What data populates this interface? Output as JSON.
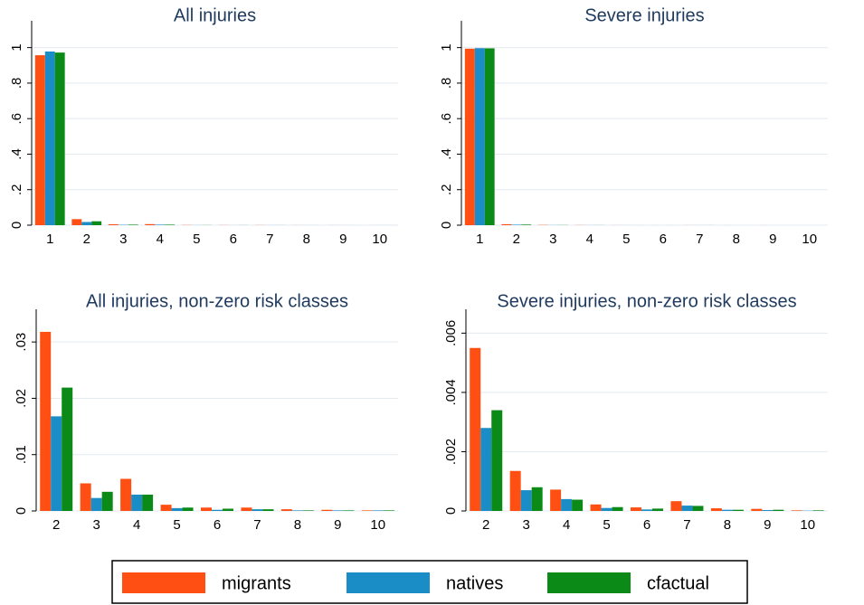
{
  "chart_data": [
    {
      "type": "bar",
      "title": "All injuries",
      "categories": [
        "1",
        "2",
        "3",
        "4",
        "5",
        "6",
        "7",
        "8",
        "9",
        "10"
      ],
      "series": [
        {
          "name": "migrants",
          "color": "#ff4f12",
          "values": [
            0.957,
            0.034,
            0.005,
            0.006,
            0.001,
            0.0006,
            0.0006,
            0.0003,
            0.0002,
            0.0001
          ]
        },
        {
          "name": "natives",
          "color": "#1a8cc6",
          "values": [
            0.978,
            0.018,
            0.002,
            0.003,
            0.0005,
            0.0002,
            0.0003,
            0.0001,
            0.0001,
            0.0001
          ]
        },
        {
          "name": "cfactual",
          "color": "#0b8a18",
          "values": [
            0.972,
            0.022,
            0.003,
            0.003,
            0.0006,
            0.0004,
            0.0003,
            0.0001,
            0.0001,
            0.0001
          ]
        }
      ],
      "ylim": [
        0,
        1.1
      ],
      "yticks": [
        0,
        {
          "value": 0.2,
          "label": ".2"
        },
        {
          "value": 0.4,
          "label": ".4"
        },
        {
          "value": 0.6,
          "label": ".6"
        },
        {
          "value": 0.8,
          "label": ".8"
        },
        1
      ],
      "grid": true
    },
    {
      "type": "bar",
      "title": "Severe injuries",
      "categories": [
        "1",
        "2",
        "3",
        "4",
        "5",
        "6",
        "7",
        "8",
        "9",
        "10"
      ],
      "series": [
        {
          "name": "migrants",
          "color": "#ff4f12",
          "values": [
            0.994,
            0.0055,
            0.0014,
            0.0007,
            0.0002,
            0.0001,
            0.0003,
            0.0001,
            0.0001,
            2e-05
          ]
        },
        {
          "name": "natives",
          "color": "#1a8cc6",
          "values": [
            0.997,
            0.0028,
            0.0007,
            0.0004,
            0.0001,
            5e-05,
            0.0002,
            4e-05,
            3e-05,
            1e-05
          ]
        },
        {
          "name": "cfactual",
          "color": "#0b8a18",
          "values": [
            0.996,
            0.0034,
            0.0008,
            0.0004,
            0.0001,
            8e-05,
            0.0002,
            4e-05,
            4e-05,
            2e-05
          ]
        }
      ],
      "ylim": [
        0,
        1.1
      ],
      "yticks": [
        0,
        {
          "value": 0.2,
          "label": ".2"
        },
        {
          "value": 0.4,
          "label": ".4"
        },
        {
          "value": 0.6,
          "label": ".6"
        },
        {
          "value": 0.8,
          "label": ".8"
        },
        1
      ],
      "grid": true
    },
    {
      "type": "bar",
      "title": "All injuries, non-zero risk classes",
      "categories": [
        "2",
        "3",
        "4",
        "5",
        "6",
        "7",
        "8",
        "9",
        "10"
      ],
      "series": [
        {
          "name": "migrants",
          "color": "#ff4f12",
          "values": [
            0.0318,
            0.0049,
            0.0057,
            0.0011,
            0.0006,
            0.0006,
            0.0003,
            0.0002,
            0.0001
          ]
        },
        {
          "name": "natives",
          "color": "#1a8cc6",
          "values": [
            0.0168,
            0.0023,
            0.0029,
            0.0005,
            0.0002,
            0.0003,
            0.0001,
            0.0001,
            0.0001
          ]
        },
        {
          "name": "cfactual",
          "color": "#0b8a18",
          "values": [
            0.0219,
            0.0034,
            0.0029,
            0.0006,
            0.0004,
            0.0003,
            0.0001,
            0.0001,
            0.0001
          ]
        }
      ],
      "ylim": [
        0,
        0.0342
      ],
      "yticks": [
        0,
        {
          "value": 0.01,
          "label": ".01"
        },
        {
          "value": 0.02,
          "label": ".02"
        },
        {
          "value": 0.03,
          "label": ".03"
        }
      ],
      "grid": true
    },
    {
      "type": "bar",
      "title": "Severe injuries, non-zero risk classes",
      "categories": [
        "2",
        "3",
        "4",
        "5",
        "6",
        "7",
        "8",
        "9",
        "10"
      ],
      "series": [
        {
          "name": "migrants",
          "color": "#ff4f12",
          "values": [
            0.0055,
            0.00135,
            0.00072,
            0.00022,
            0.00012,
            0.00033,
            9e-05,
            7e-05,
            2e-05
          ]
        },
        {
          "name": "natives",
          "color": "#1a8cc6",
          "values": [
            0.0028,
            0.0007,
            0.0004,
            0.0001,
            5e-05,
            0.00018,
            4e-05,
            3e-05,
            1e-05
          ]
        },
        {
          "name": "cfactual",
          "color": "#0b8a18",
          "values": [
            0.0034,
            0.0008,
            0.00038,
            0.00013,
            8e-05,
            0.00017,
            4e-05,
            4e-05,
            2e-05
          ]
        }
      ],
      "ylim": [
        0,
        0.0065
      ],
      "yticks": [
        0,
        {
          "value": 0.002,
          "label": ".002"
        },
        {
          "value": 0.004,
          "label": ".004"
        },
        {
          "value": 0.006,
          "label": ".006"
        }
      ],
      "grid": true
    }
  ]
}
